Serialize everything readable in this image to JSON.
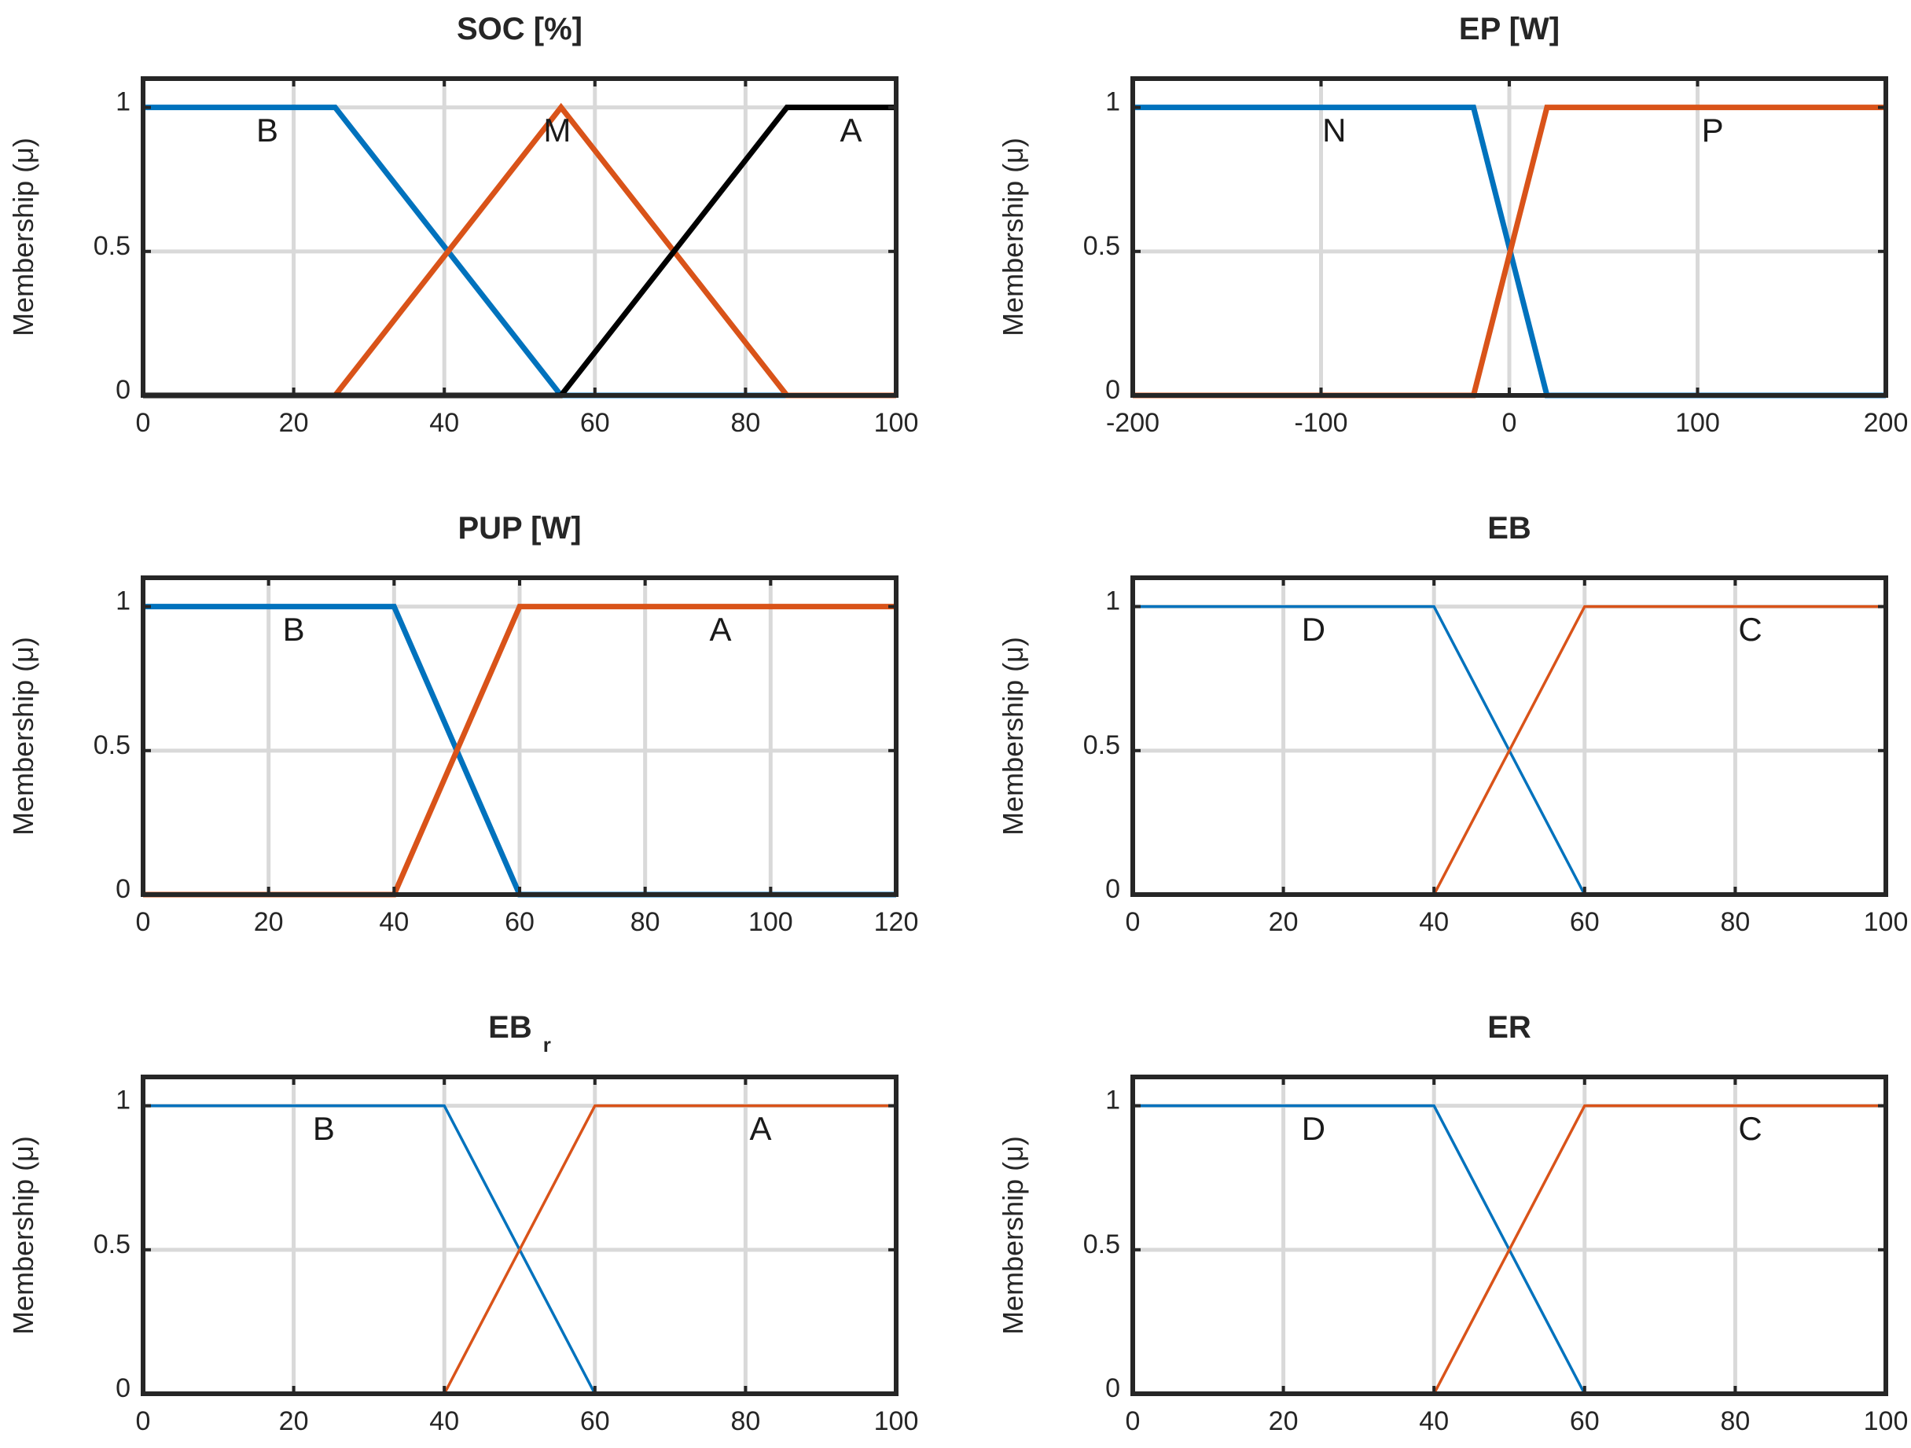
{
  "chart_data": [
    {
      "type": "line",
      "title": "SOC [%]",
      "ylabel": "Membership (μ)",
      "xlim": [
        0,
        100
      ],
      "ylim": [
        0,
        1.1
      ],
      "xticks": [
        0,
        20,
        40,
        60,
        80,
        100
      ],
      "yticks": [
        0,
        0.5,
        1
      ],
      "xtick_labels": [
        "0",
        "20",
        "40",
        "60",
        "80",
        "100"
      ],
      "ytick_labels": [
        "0",
        "0.5",
        "1"
      ],
      "line_weight": "thick",
      "grid": true,
      "series": [
        {
          "name": "B",
          "color": "#0072bd",
          "x": [
            0,
            25.5,
            55.5,
            100
          ],
          "y": [
            1,
            1,
            0,
            0
          ],
          "label_at": [
            16.5,
            0.92
          ]
        },
        {
          "name": "M",
          "color": "#d95319",
          "x": [
            0,
            25.5,
            55.5,
            85.5,
            100
          ],
          "y": [
            0,
            0,
            1,
            0,
            0
          ],
          "label_at": [
            55,
            0.92
          ]
        },
        {
          "name": "A",
          "color": "#000000",
          "x": [
            0,
            55.5,
            85.5,
            100
          ],
          "y": [
            0,
            0,
            1,
            1
          ],
          "label_at": [
            94,
            0.92
          ]
        }
      ]
    },
    {
      "type": "line",
      "title": "EP [W]",
      "ylabel": "Membership (μ)",
      "xlim": [
        -200,
        200
      ],
      "ylim": [
        0,
        1.1
      ],
      "xticks": [
        -200,
        -100,
        0,
        100,
        200
      ],
      "yticks": [
        0,
        0.5,
        1
      ],
      "xtick_labels": [
        "-200",
        "-100",
        "0",
        "100",
        "200"
      ],
      "ytick_labels": [
        "0",
        "0.5",
        "1"
      ],
      "line_weight": "thick",
      "grid": true,
      "series": [
        {
          "name": "N",
          "color": "#0072bd",
          "x": [
            -200,
            -19,
            20,
            200
          ],
          "y": [
            1,
            1,
            0,
            0
          ],
          "label_at": [
            -93,
            0.92
          ]
        },
        {
          "name": "P",
          "color": "#d95319",
          "x": [
            -200,
            -19,
            20,
            200
          ],
          "y": [
            0,
            0,
            1,
            1
          ],
          "label_at": [
            108,
            0.92
          ]
        }
      ]
    },
    {
      "type": "line",
      "title": "PUP [W]",
      "ylabel": "Membership (μ)",
      "xlim": [
        0,
        120
      ],
      "ylim": [
        0,
        1.1
      ],
      "xticks": [
        0,
        20,
        40,
        60,
        80,
        100,
        120
      ],
      "yticks": [
        0,
        0.5,
        1
      ],
      "xtick_labels": [
        "0",
        "20",
        "40",
        "60",
        "80",
        "100",
        "120"
      ],
      "ytick_labels": [
        "0",
        "0.5",
        "1"
      ],
      "line_weight": "thick",
      "grid": true,
      "series": [
        {
          "name": "B",
          "color": "#0072bd",
          "x": [
            0,
            40,
            60,
            120
          ],
          "y": [
            1,
            1,
            0,
            0
          ],
          "label_at": [
            24,
            0.92
          ]
        },
        {
          "name": "A",
          "color": "#d95319",
          "x": [
            0,
            40,
            60,
            120
          ],
          "y": [
            0,
            0,
            1,
            1
          ],
          "label_at": [
            92,
            0.92
          ]
        }
      ]
    },
    {
      "type": "line",
      "title": "EB",
      "ylabel": "Membership (μ)",
      "xlim": [
        0,
        100
      ],
      "ylim": [
        0,
        1.1
      ],
      "xticks": [
        0,
        20,
        40,
        60,
        80,
        100
      ],
      "yticks": [
        0,
        0.5,
        1
      ],
      "xtick_labels": [
        "0",
        "20",
        "40",
        "60",
        "80",
        "100"
      ],
      "ytick_labels": [
        "0",
        "0.5",
        "1"
      ],
      "line_weight": "thin",
      "grid": true,
      "series": [
        {
          "name": "D",
          "color": "#0072bd",
          "x": [
            0,
            40,
            60,
            100
          ],
          "y": [
            1,
            1,
            0,
            0
          ],
          "label_at": [
            24,
            0.92
          ]
        },
        {
          "name": "C",
          "color": "#d95319",
          "x": [
            0,
            40,
            60,
            100
          ],
          "y": [
            0,
            0,
            1,
            1
          ],
          "label_at": [
            82,
            0.92
          ]
        }
      ]
    },
    {
      "type": "line",
      "title": "EB",
      "title_sub": "r",
      "ylabel": "Membership (μ)",
      "xlim": [
        0,
        100
      ],
      "ylim": [
        0,
        1.1
      ],
      "xticks": [
        0,
        20,
        40,
        60,
        80,
        100
      ],
      "yticks": [
        0,
        0.5,
        1
      ],
      "xtick_labels": [
        "0",
        "20",
        "40",
        "60",
        "80",
        "100"
      ],
      "ytick_labels": [
        "0",
        "0.5",
        "1"
      ],
      "line_weight": "thin",
      "grid": true,
      "series": [
        {
          "name": "B",
          "color": "#0072bd",
          "x": [
            0,
            40,
            60,
            100
          ],
          "y": [
            1,
            1,
            0,
            0
          ],
          "label_at": [
            24,
            0.92
          ]
        },
        {
          "name": "A",
          "color": "#d95319",
          "x": [
            0,
            40,
            60,
            100
          ],
          "y": [
            0,
            0,
            1,
            1
          ],
          "label_at": [
            82,
            0.92
          ]
        }
      ]
    },
    {
      "type": "line",
      "title": "ER",
      "ylabel": "Membership (μ)",
      "xlim": [
        0,
        100
      ],
      "ylim": [
        0,
        1.1
      ],
      "xticks": [
        0,
        20,
        40,
        60,
        80,
        100
      ],
      "yticks": [
        0,
        0.5,
        1
      ],
      "xtick_labels": [
        "0",
        "20",
        "40",
        "60",
        "80",
        "100"
      ],
      "ytick_labels": [
        "0",
        "0.5",
        "1"
      ],
      "line_weight": "thin",
      "grid": true,
      "series": [
        {
          "name": "D",
          "color": "#0072bd",
          "x": [
            0,
            40,
            60,
            100
          ],
          "y": [
            1,
            1,
            0,
            0
          ],
          "label_at": [
            24,
            0.92
          ]
        },
        {
          "name": "C",
          "color": "#d95319",
          "x": [
            0,
            40,
            60,
            100
          ],
          "y": [
            0,
            0,
            1,
            1
          ],
          "label_at": [
            82,
            0.92
          ]
        }
      ]
    }
  ]
}
